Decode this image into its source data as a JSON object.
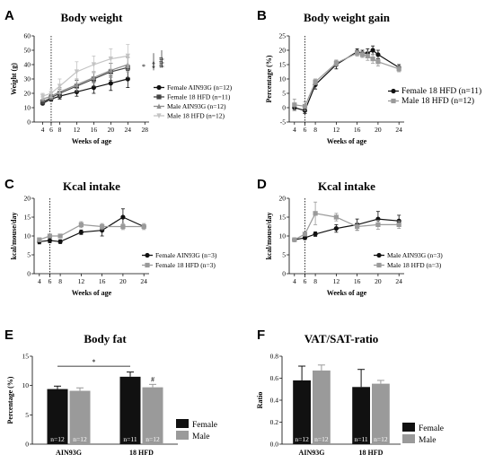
{
  "colors": {
    "black": "#111111",
    "dark_gray": "#444444",
    "gray": "#8e8e8e",
    "light_gray": "#c4c4c4",
    "female_bar": "#111111",
    "male_bar": "#9a9a9a"
  },
  "panels": {
    "A": {
      "letter": "A"
    },
    "B": {
      "letter": "B"
    },
    "C": {
      "letter": "C"
    },
    "D": {
      "letter": "D"
    },
    "E": {
      "letter": "E"
    },
    "F": {
      "letter": "F"
    }
  },
  "chart_data": [
    {
      "id": "A",
      "type": "line",
      "title": "Body weight",
      "xlabel": "Weeks of age",
      "ylabel": "Weight (g)",
      "xlim": [
        2,
        29
      ],
      "ylim": [
        0,
        60
      ],
      "xticks": [
        4,
        6,
        8,
        12,
        16,
        20,
        24,
        28
      ],
      "yticks": [
        0,
        10,
        20,
        30,
        40,
        50,
        60
      ],
      "vline": 6,
      "legend_position": "right",
      "series": [
        {
          "name": "Female AIN93G (n=12)",
          "color": "#111111",
          "marker": "circle",
          "x": [
            4,
            6,
            8,
            12,
            16,
            20,
            24
          ],
          "y": [
            13,
            16,
            18,
            21,
            24,
            27,
            30
          ],
          "err": [
            1,
            1.5,
            2,
            3,
            4,
            5,
            6
          ]
        },
        {
          "name": "Female 18 HFD (n=11)",
          "color": "#444444",
          "marker": "square",
          "x": [
            4,
            6,
            8,
            12,
            16,
            20,
            24
          ],
          "y": [
            14,
            17,
            20,
            25,
            30,
            35,
            38
          ],
          "err": [
            1.5,
            2,
            3,
            4,
            5,
            6,
            7
          ]
        },
        {
          "name": "Male AIN93G (n=12)",
          "color": "#8e8e8e",
          "marker": "triangle",
          "x": [
            4,
            6,
            8,
            12,
            16,
            20,
            24
          ],
          "y": [
            16,
            18,
            21,
            26,
            31,
            36,
            40
          ],
          "err": [
            1.5,
            2,
            3,
            4,
            4,
            5,
            5
          ]
        },
        {
          "name": "Male 18 HFD (n=12)",
          "color": "#c4c4c4",
          "marker": "triangle-down",
          "x": [
            4,
            6,
            8,
            12,
            16,
            20,
            24
          ],
          "y": [
            18,
            20,
            25,
            35,
            40,
            44,
            46
          ],
          "err": [
            2,
            3,
            5,
            7,
            6,
            7,
            8
          ]
        }
      ],
      "annotations": [
        "*",
        "**",
        "###"
      ]
    },
    {
      "id": "B",
      "type": "line",
      "title": "Body weight gain",
      "xlabel": "Weeks of age",
      "ylabel": "Percentage (%)",
      "xlim": [
        3,
        25
      ],
      "ylim": [
        -5,
        25
      ],
      "xticks": [
        4,
        6,
        8,
        12,
        16,
        20,
        24
      ],
      "yticks": [
        -5,
        0,
        5,
        10,
        15,
        20,
        25
      ],
      "vline": 6,
      "legend_position": "right",
      "series": [
        {
          "name": "Female 18 HFD (n=11)",
          "color": "#111111",
          "marker": "circle",
          "x": [
            4,
            6,
            8,
            12,
            16,
            17,
            18,
            19,
            20,
            24
          ],
          "y": [
            0,
            -1,
            8,
            15,
            19.5,
            19,
            19,
            20,
            18.5,
            14
          ],
          "err": [
            1,
            1,
            1.5,
            1.5,
            1,
            1,
            1.5,
            1.5,
            1.5,
            1
          ]
        },
        {
          "name": "Male 18 HFD (n=12)",
          "color": "#9a9a9a",
          "marker": "square",
          "x": [
            4,
            6,
            8,
            12,
            16,
            17,
            18,
            19,
            20,
            24
          ],
          "y": [
            1,
            0.5,
            9,
            15.5,
            19,
            18.5,
            18,
            17,
            16,
            13.5
          ],
          "err": [
            2,
            1.5,
            1,
            1,
            1,
            1,
            1.5,
            1.5,
            1.5,
            1
          ]
        }
      ]
    },
    {
      "id": "C",
      "type": "line",
      "title": "Kcal intake",
      "xlabel": "Weeks of age",
      "ylabel": "kcal/mouse/day",
      "xlim": [
        3,
        25
      ],
      "ylim": [
        0,
        20
      ],
      "xticks": [
        4,
        6,
        8,
        12,
        16,
        20,
        24
      ],
      "yticks": [
        0,
        5,
        10,
        15,
        20
      ],
      "vline": 6,
      "legend_position": "right",
      "series": [
        {
          "name": "Female AIN93G (n=3)",
          "color": "#111111",
          "marker": "circle",
          "x": [
            4,
            6,
            8,
            12,
            16,
            20,
            24
          ],
          "y": [
            8.5,
            8.8,
            8.5,
            11,
            11.5,
            15,
            12.5
          ],
          "err": [
            0.6,
            0.6,
            0.5,
            0.6,
            1.5,
            2.2,
            0.5
          ]
        },
        {
          "name": "Female 18 HFD (n=3)",
          "color": "#9a9a9a",
          "marker": "square",
          "x": [
            4,
            6,
            8,
            12,
            16,
            20,
            24
          ],
          "y": [
            9,
            10,
            10,
            13,
            12.5,
            12.5,
            12.5
          ],
          "err": [
            0.5,
            0.5,
            0.5,
            0.8,
            0.8,
            0.8,
            0.8
          ]
        }
      ]
    },
    {
      "id": "D",
      "type": "line",
      "title": "Kcal intake",
      "xlabel": "Weeks of age",
      "ylabel": "kcal/mouse/day",
      "xlim": [
        3,
        25
      ],
      "ylim": [
        0,
        20
      ],
      "xticks": [
        4,
        6,
        8,
        12,
        16,
        20,
        24
      ],
      "yticks": [
        0,
        5,
        10,
        15,
        20
      ],
      "vline": 6,
      "legend_position": "right",
      "series": [
        {
          "name": "Male AIN93G (n=3)",
          "color": "#111111",
          "marker": "circle",
          "x": [
            4,
            6,
            8,
            12,
            16,
            20,
            24
          ],
          "y": [
            9,
            9.5,
            10.5,
            12,
            13,
            14.5,
            14
          ],
          "err": [
            0.4,
            0.4,
            0.6,
            1,
            1.5,
            2,
            1.5
          ]
        },
        {
          "name": "Male 18 HFD (n=3)",
          "color": "#9a9a9a",
          "marker": "square",
          "x": [
            4,
            6,
            8,
            12,
            16,
            20,
            24
          ],
          "y": [
            9,
            10.5,
            16,
            15,
            12.5,
            13,
            13
          ],
          "err": [
            0.5,
            0.5,
            3,
            1,
            1,
            1.2,
            1
          ]
        }
      ]
    },
    {
      "id": "E",
      "type": "bar",
      "title": "Body fat",
      "xlabel": "",
      "ylabel": "Percentage (%)",
      "ylim": [
        0,
        15
      ],
      "yticks": [
        0,
        5,
        10,
        15
      ],
      "categories": [
        "AIN93G",
        "18 HFD"
      ],
      "legend_position": "right",
      "series": [
        {
          "name": "Female",
          "color": "#111111",
          "values": [
            9.4,
            11.5
          ],
          "err": [
            0.5,
            0.8
          ],
          "n": [
            "n=12",
            "n=11"
          ]
        },
        {
          "name": "Male",
          "color": "#9a9a9a",
          "values": [
            9.1,
            9.7
          ],
          "err": [
            0.5,
            0.5
          ],
          "n": [
            "n=12",
            "n=12"
          ]
        }
      ],
      "significance": "*",
      "marker_hash": "#"
    },
    {
      "id": "F",
      "type": "bar",
      "title": "VAT/SAT-ratio",
      "xlabel": "",
      "ylabel": "Ratio",
      "ylim": [
        0,
        0.8
      ],
      "yticks": [
        0.0,
        0.2,
        0.4,
        0.6,
        0.8
      ],
      "categories": [
        "AIN93G",
        "18 HFD"
      ],
      "legend_position": "right",
      "series": [
        {
          "name": "Female",
          "color": "#111111",
          "values": [
            0.58,
            0.52
          ],
          "err": [
            0.13,
            0.16
          ],
          "n": [
            "n=12",
            "n=11"
          ]
        },
        {
          "name": "Male",
          "color": "#9a9a9a",
          "values": [
            0.67,
            0.55
          ],
          "err": [
            0.05,
            0.03
          ],
          "n": [
            "n=12",
            "n=12"
          ]
        }
      ]
    }
  ]
}
